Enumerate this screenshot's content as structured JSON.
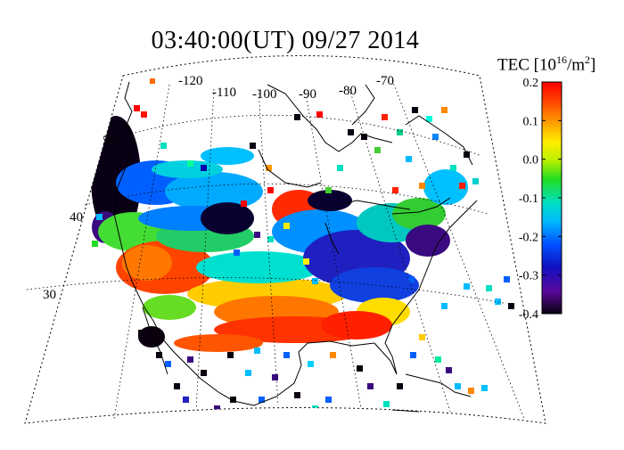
{
  "title": "03:40:00(UT)  09/27 2014",
  "colorbar": {
    "label_prefix": "TEC [10",
    "label_exp": "16",
    "label_unit": "/m",
    "label_exp2": "2",
    "label_suffix": "]",
    "ticks": [
      "0.2",
      "0.1",
      "0.0",
      "-0.1",
      "-0.2",
      "-0.3",
      "-0.4"
    ],
    "min": -0.4,
    "max": 0.2
  },
  "longitude_labels": [
    "-120",
    "-110",
    "-100",
    "-90",
    "-80",
    "-70"
  ],
  "latitude_labels": [
    "50",
    "40",
    "30"
  ],
  "map": {
    "region": "North America (continental US, southern Canada, Mexico, Caribbean)",
    "background": "#ffffff",
    "grid_style": "dotted"
  }
}
